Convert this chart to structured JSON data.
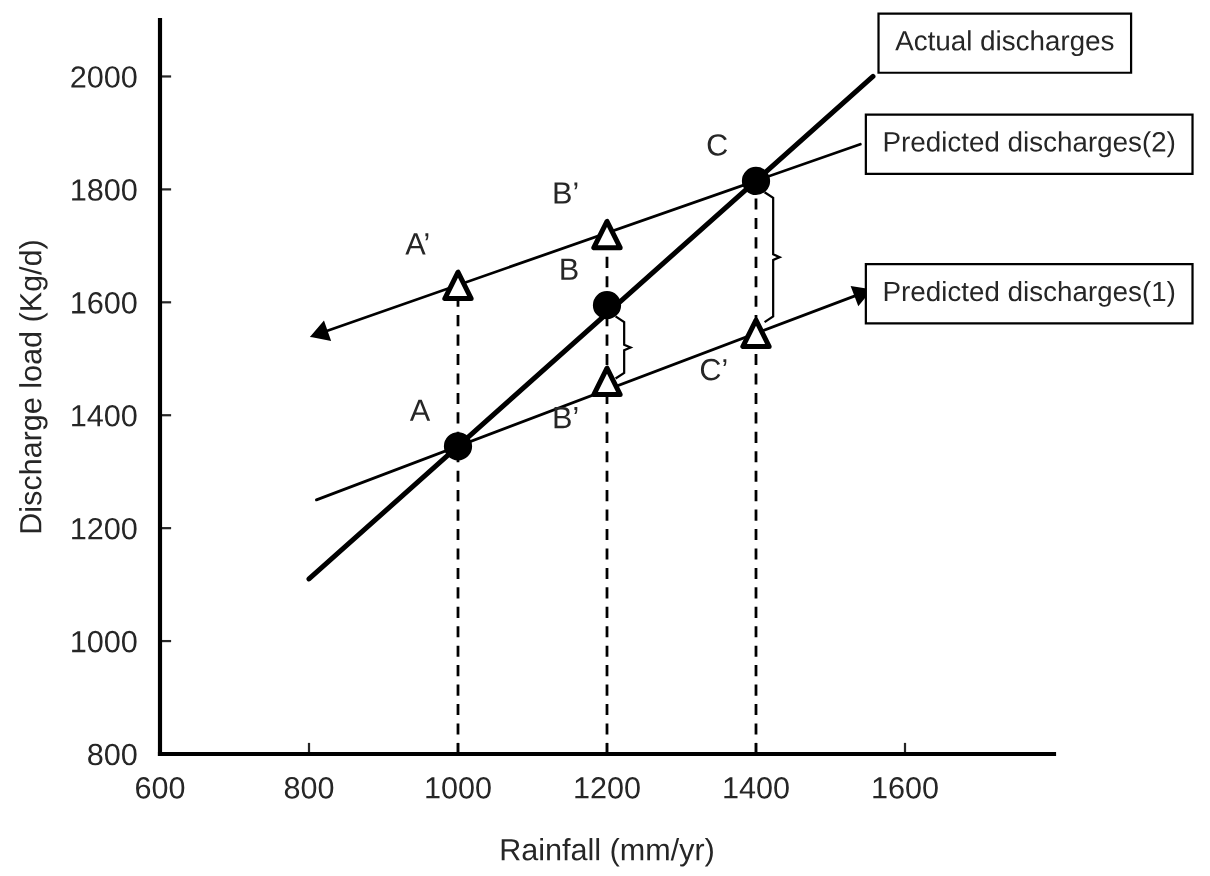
{
  "chart_data": {
    "type": "line",
    "xlabel": "Rainfall (mm/yr)",
    "ylabel": "Discharge load (Kg/d)",
    "xlim": [
      600,
      1800
    ],
    "xticks": [
      600,
      800,
      1000,
      1200,
      1400,
      1600
    ],
    "ylim": [
      800,
      2100
    ],
    "yticks": [
      800,
      1000,
      1200,
      1400,
      1600,
      1800,
      2000
    ],
    "legend": "top right",
    "ref_lines": [
      {
        "axis": "x",
        "value": 1000,
        "color": "#000000",
        "line_style": "dashed"
      },
      {
        "axis": "x",
        "value": 1200,
        "color": "#000000",
        "line_style": "dashed"
      },
      {
        "axis": "x",
        "value": 1400,
        "color": "#000000",
        "line_style": "dashed"
      }
    ],
    "series": [
      {
        "name": "Actual discharges",
        "color": "#000000",
        "x": [
          800,
          1557
        ],
        "values": [
          1110,
          2000
        ],
        "line_style": "solid"
      },
      {
        "name": "Predicted discharges(2)",
        "color": "#000000",
        "x": [
          1540,
          817
        ],
        "values": [
          1880,
          1546
        ],
        "line_style": "solid"
      },
      {
        "name": "Predicted discharges(1)",
        "color": "#000000",
        "x": [
          810,
          1540
        ],
        "values": [
          1250,
          1615
        ],
        "line_style": "solid"
      },
      {
        "type": "scatter",
        "color": "#000000",
        "x": [
          1000,
          1200,
          1400
        ],
        "values": [
          1345,
          1595,
          1815
        ],
        "marker": "circle"
      },
      {
        "type": "scatter",
        "color": "#000000",
        "x": [
          1000,
          1200,
          1200,
          1400
        ],
        "values": [
          1630,
          1720,
          1460,
          1545
        ],
        "marker": "triangle"
      }
    ],
    "annotations": [
      {
        "text": "A",
        "x": 1000,
        "y": 1345
      },
      {
        "text": "B",
        "x": 1200,
        "y": 1595
      },
      {
        "text": "C",
        "x": 1400,
        "y": 1815
      },
      {
        "text": "A’",
        "x": 1000,
        "y": 1630
      },
      {
        "text": "B’",
        "x": 1200,
        "y": 1720
      },
      {
        "text": "B’",
        "x": 1200,
        "y": 1460
      },
      {
        "text": "C’",
        "x": 1400,
        "y": 1545
      }
    ]
  }
}
